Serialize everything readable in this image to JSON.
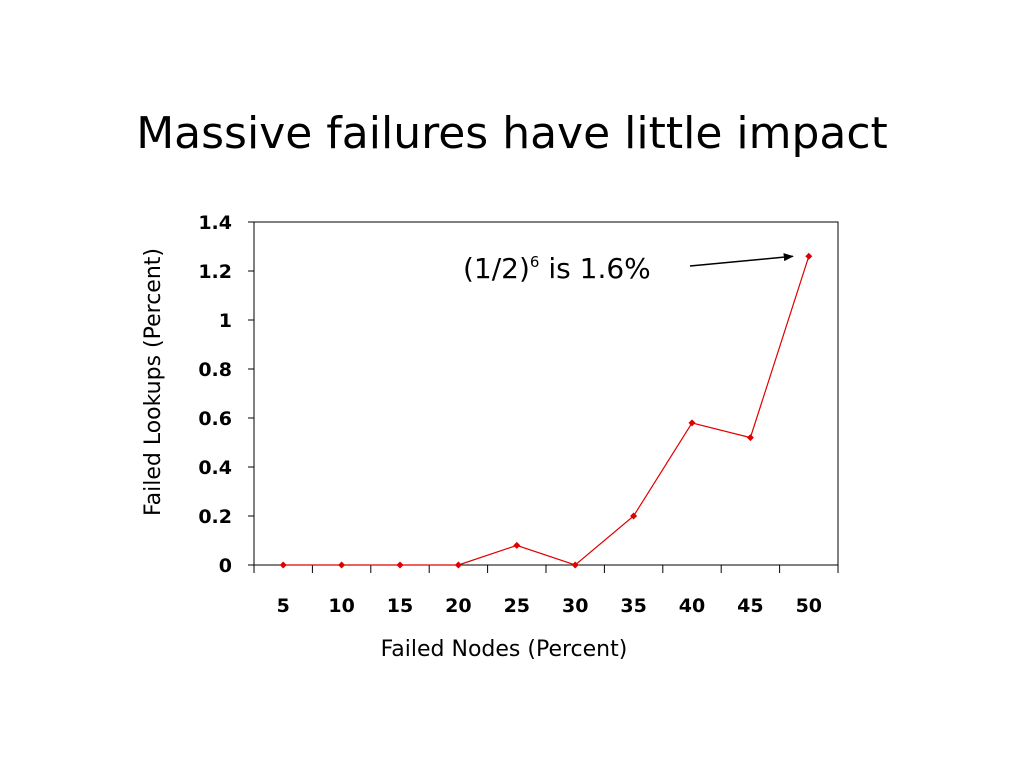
{
  "slide": {
    "title": "Massive failures have little impact"
  },
  "chart_data": {
    "type": "line",
    "title": "",
    "xlabel": "Failed Nodes (Percent)",
    "ylabel": "Failed Lookups (Percent)",
    "categories": [
      "5",
      "10",
      "15",
      "20",
      "25",
      "30",
      "35",
      "40",
      "45",
      "50"
    ],
    "series": [
      {
        "values": [
          0,
          0,
          0,
          0,
          0.08,
          0,
          0.2,
          0.58,
          0.52,
          1.26
        ],
        "color": "#e00000"
      }
    ],
    "ylim": [
      0,
      1.4
    ],
    "yticks": [
      "0",
      "0.2",
      "0.4",
      "0.6",
      "0.8",
      "1",
      "1.2",
      "1.4"
    ],
    "grid": false,
    "legend": "none",
    "annotation": {
      "base": "(1/2)",
      "superscript": "6",
      "suffix": " is 1.6%",
      "target_category": "50",
      "target_value": 1.26
    }
  }
}
